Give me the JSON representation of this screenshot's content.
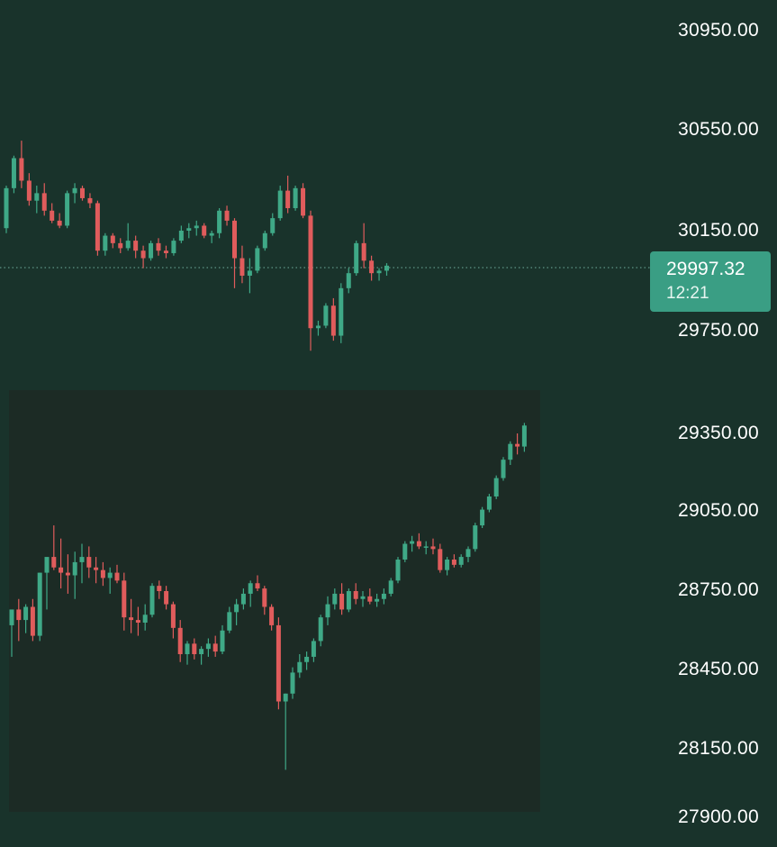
{
  "axis": {
    "labels": [
      "30950.00",
      "30550.00",
      "30150.00",
      "29750.00",
      "29350.00",
      "29050.00",
      "28750.00",
      "28450.00",
      "28150.00",
      "27900.00"
    ]
  },
  "current_price": {
    "value": "29997.32",
    "countdown": "12:21"
  },
  "colors": {
    "background": "#19332b",
    "inset_panel": "#1c2b25",
    "up": "#3fa987",
    "down": "#e05c5c",
    "badge": "#3a9e84",
    "price_line": "#6fae9c"
  },
  "chart_data": [
    {
      "type": "candlestick",
      "title": "",
      "yticks": [
        30950,
        30550,
        30150,
        29750
      ],
      "current_price": 29997.32,
      "series": [
        {
          "ohlc": [
            [
              30160,
              30330,
              30140,
              30320
            ],
            [
              30320,
              30450,
              30300,
              30440
            ],
            [
              30440,
              30510,
              30320,
              30350
            ],
            [
              30350,
              30380,
              30250,
              30270
            ],
            [
              30270,
              30330,
              30220,
              30300
            ],
            [
              30300,
              30340,
              30210,
              30230
            ],
            [
              30230,
              30260,
              30180,
              30190
            ],
            [
              30190,
              30220,
              30160,
              30170
            ],
            [
              30170,
              30310,
              30160,
              30300
            ],
            [
              30300,
              30340,
              30260,
              30320
            ],
            [
              30320,
              30330,
              30270,
              30280
            ],
            [
              30280,
              30300,
              30240,
              30260
            ],
            [
              30260,
              30270,
              30050,
              30070
            ],
            [
              30070,
              30140,
              30050,
              30130
            ],
            [
              30130,
              30140,
              30080,
              30100
            ],
            [
              30100,
              30120,
              30060,
              30080
            ],
            [
              30080,
              30180,
              30070,
              30110
            ],
            [
              30110,
              30130,
              30040,
              30070
            ],
            [
              30070,
              30090,
              30000,
              30040
            ],
            [
              30040,
              30110,
              30030,
              30100
            ],
            [
              30100,
              30120,
              30050,
              30070
            ],
            [
              30070,
              30090,
              30040,
              30060
            ],
            [
              30060,
              30120,
              30050,
              30110
            ],
            [
              30110,
              30170,
              30100,
              30150
            ],
            [
              30150,
              30180,
              30120,
              30160
            ],
            [
              30160,
              30190,
              30130,
              30170
            ],
            [
              30170,
              30180,
              30120,
              30130
            ],
            [
              30130,
              30150,
              30100,
              30140
            ],
            [
              30140,
              30240,
              30120,
              30230
            ],
            [
              30230,
              30250,
              30170,
              30190
            ],
            [
              30190,
              30200,
              29920,
              30040
            ],
            [
              30040,
              30090,
              29940,
              29970
            ],
            [
              29970,
              30040,
              29900,
              29990
            ],
            [
              29990,
              30090,
              29980,
              30080
            ],
            [
              30080,
              30150,
              30070,
              30140
            ],
            [
              30140,
              30220,
              30130,
              30200
            ],
            [
              30200,
              30330,
              30190,
              30310
            ],
            [
              30310,
              30370,
              30220,
              30240
            ],
            [
              30240,
              30330,
              30230,
              30320
            ],
            [
              30320,
              30340,
              30200,
              30210
            ],
            [
              30210,
              30230,
              29670,
              29760
            ],
            [
              29760,
              29790,
              29730,
              29770
            ],
            [
              29770,
              29860,
              29760,
              29850
            ],
            [
              29850,
              29880,
              29710,
              29730
            ],
            [
              29730,
              29940,
              29700,
              29920
            ],
            [
              29920,
              30000,
              29900,
              29980
            ],
            [
              29980,
              30110,
              29970,
              30100
            ],
            [
              30100,
              30180,
              30000,
              30030
            ],
            [
              30030,
              30050,
              29950,
              29980
            ],
            [
              29980,
              30000,
              29950,
              29990
            ],
            [
              29990,
              30020,
              29970,
              30010
            ]
          ]
        }
      ]
    },
    {
      "type": "candlestick",
      "title": "",
      "yticks": [
        29350,
        29050,
        28750,
        28450,
        28150,
        27900
      ],
      "series": [
        {
          "ohlc": [
            [
              28620,
              28670,
              28500,
              28680
            ],
            [
              28680,
              28720,
              28560,
              28640
            ],
            [
              28640,
              28700,
              28590,
              28690
            ],
            [
              28690,
              28720,
              28560,
              28580
            ],
            [
              28580,
              28820,
              28560,
              28820
            ],
            [
              28820,
              28870,
              28680,
              28880
            ],
            [
              28880,
              29000,
              28830,
              28840
            ],
            [
              28840,
              28950,
              28760,
              28820
            ],
            [
              28820,
              28890,
              28740,
              28810
            ],
            [
              28810,
              28900,
              28720,
              28860
            ],
            [
              28860,
              28930,
              28780,
              28880
            ],
            [
              28880,
              28920,
              28800,
              28840
            ],
            [
              28840,
              28880,
              28780,
              28830
            ],
            [
              28830,
              28860,
              28770,
              28800
            ],
            [
              28800,
              28840,
              28740,
              28820
            ],
            [
              28820,
              28850,
              28780,
              28790
            ],
            [
              28790,
              28820,
              28600,
              28650
            ],
            [
              28650,
              28720,
              28590,
              28640
            ],
            [
              28640,
              28690,
              28580,
              28630
            ],
            [
              28630,
              28700,
              28600,
              28660
            ],
            [
              28660,
              28780,
              28650,
              28770
            ],
            [
              28770,
              28790,
              28720,
              28750
            ],
            [
              28750,
              28770,
              28680,
              28700
            ],
            [
              28700,
              28710,
              28570,
              28610
            ],
            [
              28610,
              28640,
              28480,
              28510
            ],
            [
              28510,
              28560,
              28470,
              28550
            ],
            [
              28550,
              28570,
              28490,
              28510
            ],
            [
              28510,
              28540,
              28470,
              28530
            ],
            [
              28530,
              28570,
              28500,
              28550
            ],
            [
              28550,
              28580,
              28500,
              28520
            ],
            [
              28520,
              28620,
              28510,
              28600
            ],
            [
              28600,
              28690,
              28590,
              28670
            ],
            [
              28670,
              28720,
              28620,
              28700
            ],
            [
              28700,
              28760,
              28680,
              28740
            ],
            [
              28740,
              28790,
              28690,
              28780
            ],
            [
              28780,
              28810,
              28750,
              28760
            ],
            [
              28760,
              28770,
              28660,
              28690
            ],
            [
              28690,
              28700,
              28600,
              28620
            ],
            [
              28620,
              28650,
              28300,
              28330
            ],
            [
              28330,
              28360,
              28070,
              28360
            ],
            [
              28360,
              28460,
              28340,
              28440
            ],
            [
              28440,
              28510,
              28420,
              28480
            ],
            [
              28480,
              28520,
              28450,
              28500
            ],
            [
              28500,
              28570,
              28480,
              28560
            ],
            [
              28560,
              28660,
              28540,
              28650
            ],
            [
              28650,
              28730,
              28620,
              28700
            ],
            [
              28700,
              28760,
              28680,
              28740
            ],
            [
              28740,
              28780,
              28660,
              28680
            ],
            [
              28680,
              28760,
              28670,
              28750
            ],
            [
              28750,
              28780,
              28700,
              28720
            ],
            [
              28720,
              28750,
              28690,
              28730
            ],
            [
              28730,
              28760,
              28700,
              28710
            ],
            [
              28710,
              28740,
              28690,
              28720
            ],
            [
              28720,
              28760,
              28700,
              28740
            ],
            [
              28740,
              28800,
              28730,
              28790
            ],
            [
              28790,
              28880,
              28780,
              28870
            ],
            [
              28870,
              28940,
              28860,
              28930
            ],
            [
              28930,
              28960,
              28900,
              28940
            ],
            [
              28940,
              28970,
              28910,
              28920
            ],
            [
              28920,
              28940,
              28890,
              28920
            ],
            [
              28920,
              28950,
              28890,
              28910
            ],
            [
              28910,
              28930,
              28820,
              28830
            ],
            [
              28830,
              28880,
              28810,
              28870
            ],
            [
              28870,
              28890,
              28840,
              28850
            ],
            [
              28850,
              28890,
              28840,
              28880
            ],
            [
              28880,
              28920,
              28860,
              28910
            ],
            [
              28910,
              29010,
              28900,
              29000
            ],
            [
              29000,
              29070,
              28990,
              29060
            ],
            [
              29060,
              29120,
              29050,
              29110
            ],
            [
              29110,
              29190,
              29100,
              29180
            ],
            [
              29180,
              29260,
              29170,
              29250
            ],
            [
              29250,
              29320,
              29230,
              29310
            ],
            [
              29310,
              29350,
              29270,
              29300
            ],
            [
              29300,
              29390,
              29280,
              29380
            ]
          ]
        }
      ]
    }
  ]
}
